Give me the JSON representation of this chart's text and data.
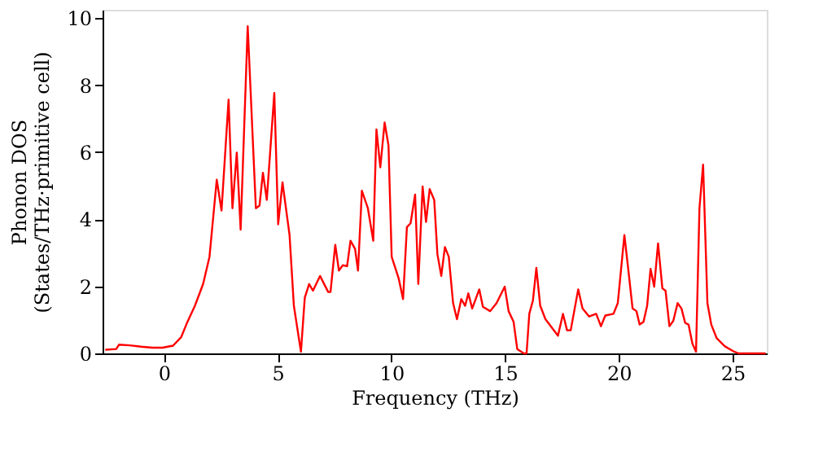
{
  "chart_data": {
    "type": "line",
    "xlabel": "Frequency (THz)",
    "ylabel": "Phonon DOS\n(States/THz·primitive cell)",
    "xlim": [
      -2.7,
      26.5
    ],
    "ylim": [
      0,
      10.25
    ],
    "xticks": [
      0,
      5,
      10,
      15,
      20,
      25
    ],
    "yticks": [
      0,
      2,
      4,
      6,
      8,
      10
    ],
    "line_style": "solid",
    "series": [
      {
        "color": "#ff0000",
        "x": [
          -2.58,
          -2.1,
          -1.98,
          -1.5,
          -1.0,
          -0.5,
          -0.07,
          0.4,
          0.76,
          1.0,
          1.36,
          1.72,
          2.0,
          2.32,
          2.53,
          2.84,
          3.01,
          3.2,
          3.37,
          3.68,
          4.04,
          4.2,
          4.35,
          4.52,
          4.85,
          5.02,
          5.21,
          5.52,
          5.71,
          6.02,
          6.19,
          6.38,
          6.55,
          6.86,
          7.22,
          7.32,
          7.53,
          7.69,
          7.86,
          8.05,
          8.2,
          8.4,
          8.53,
          8.7,
          8.96,
          9.2,
          9.34,
          9.51,
          9.7,
          9.87,
          10.01,
          10.32,
          10.51,
          10.68,
          10.84,
          11.04,
          11.18,
          11.37,
          11.52,
          11.68,
          11.88,
          12.02,
          12.19,
          12.35,
          12.52,
          12.71,
          12.88,
          13.07,
          13.24,
          13.38,
          13.55,
          13.86,
          14.02,
          14.34,
          14.62,
          14.98,
          15.15,
          15.37,
          15.53,
          15.82,
          15.94,
          16.06,
          16.22,
          16.37,
          16.54,
          16.77,
          17.32,
          17.54,
          17.72,
          17.88,
          18.21,
          18.4,
          18.69,
          19.0,
          19.21,
          19.4,
          19.76,
          19.95,
          20.24,
          20.43,
          20.6,
          20.77,
          20.91,
          21.08,
          21.24,
          21.39,
          21.55,
          21.72,
          21.91,
          22.05,
          22.22,
          22.39,
          22.58,
          22.75,
          22.91,
          23.06,
          23.23,
          23.39,
          23.54,
          23.7,
          23.89,
          24.06,
          24.3,
          24.66,
          25.07,
          25.26,
          26.45
        ],
        "values": [
          0.11,
          0.13,
          0.26,
          0.24,
          0.2,
          0.17,
          0.17,
          0.23,
          0.49,
          0.89,
          1.42,
          2.07,
          2.88,
          5.18,
          4.26,
          7.57,
          4.33,
          5.99,
          3.69,
          9.76,
          4.33,
          4.41,
          5.39,
          4.58,
          7.77,
          3.85,
          5.1,
          3.53,
          1.42,
          0.05,
          1.66,
          2.07,
          1.87,
          2.31,
          1.83,
          1.83,
          3.24,
          2.47,
          2.63,
          2.6,
          3.36,
          3.12,
          2.47,
          4.85,
          4.34,
          3.36,
          6.68,
          5.55,
          6.89,
          6.2,
          2.88,
          2.23,
          1.62,
          3.77,
          3.88,
          4.74,
          2.07,
          4.98,
          3.92,
          4.9,
          4.58,
          2.96,
          2.31,
          3.17,
          2.88,
          1.5,
          1.02,
          1.62,
          1.42,
          1.79,
          1.34,
          1.91,
          1.39,
          1.26,
          1.5,
          1.99,
          1.26,
          0.94,
          0.13,
          0.0,
          0.0,
          1.18,
          1.58,
          2.55,
          1.42,
          1.02,
          0.53,
          1.18,
          0.69,
          0.69,
          1.91,
          1.34,
          1.1,
          1.18,
          0.81,
          1.13,
          1.18,
          1.5,
          3.53,
          2.39,
          1.34,
          1.26,
          0.86,
          0.94,
          1.42,
          2.52,
          1.99,
          3.28,
          1.94,
          1.87,
          0.81,
          0.97,
          1.5,
          1.34,
          0.91,
          0.86,
          0.29,
          0.05,
          4.33,
          5.63,
          1.5,
          0.86,
          0.45,
          0.21,
          0.05,
          0.0,
          0.0
        ]
      }
    ]
  }
}
